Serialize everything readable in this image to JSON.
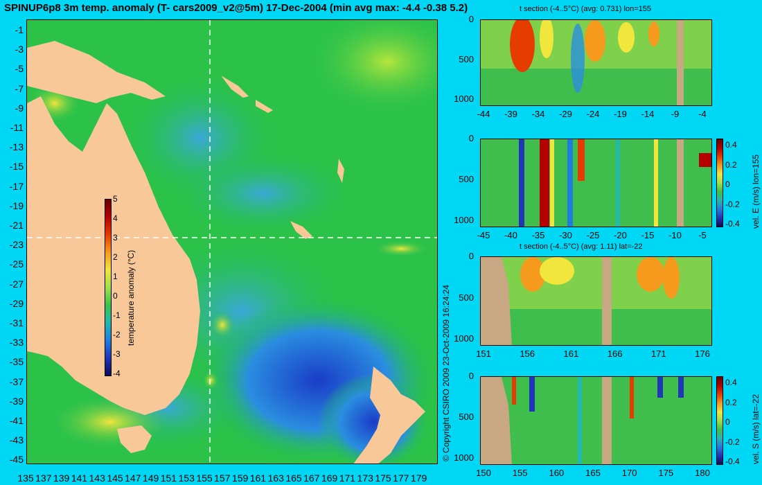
{
  "title": "SPINUP6p8 3m temp. anomaly (T- cars2009_v2@5m) 17-Dec-2004 (min avg max: -4.4 -0.38 5.2)",
  "copyright": "© Copyright CSIRO 2009   23-Oct-2009 16:24:24",
  "map": {
    "lat_labels": [
      "-1",
      "-3",
      "-5",
      "-7",
      "-9",
      "-11",
      "-13",
      "-15",
      "-17",
      "-19",
      "-21",
      "-23",
      "-25",
      "-27",
      "-29",
      "-31",
      "-33",
      "-35",
      "-37",
      "-39",
      "-41",
      "-43",
      "-45"
    ],
    "lon_labels": [
      "135",
      "137",
      "139",
      "141",
      "143",
      "145",
      "147",
      "149",
      "151",
      "153",
      "155",
      "157",
      "159",
      "161",
      "163",
      "165",
      "167",
      "169",
      "171",
      "173",
      "175",
      "177",
      "179"
    ],
    "colorbar": {
      "label": "temperature anomaly (°C)",
      "ticks": [
        "5",
        "4",
        "3",
        "2",
        "1",
        "0",
        "-1",
        "-2",
        "-3",
        "-4"
      ]
    },
    "colors": {
      "land": "#f8c898",
      "ocean_green": "#22c04a",
      "ocean_blue": "#1e7ee0",
      "warm": "#e63c00",
      "section_line": "#ffffff"
    }
  },
  "panels": [
    {
      "title": "t section (-4..5°C) (avg: 0.731) lon=155",
      "y_ticks": [
        "0",
        "500",
        "1000"
      ],
      "x_ticks": [
        "-44",
        "-39",
        "-34",
        "-29",
        "-24",
        "-19",
        "-14",
        "-9",
        "-4"
      ]
    },
    {
      "title": "",
      "y_ticks": [
        "0",
        "500",
        "1000"
      ],
      "x_ticks": [
        "-45",
        "-40",
        "-35",
        "-30",
        "-25",
        "-20",
        "-15",
        "-10",
        "-5"
      ],
      "colorbar_label": "vel. E (m/s) lon=155",
      "colorbar_ticks": [
        "0.4",
        "0.2",
        "0",
        "-0.2",
        "-0.4"
      ]
    },
    {
      "title": "t section (-4..5°C) (avg: 1.11) lat=-22",
      "y_ticks": [
        "0",
        "500",
        "1000"
      ],
      "x_ticks": [
        "151",
        "156",
        "161",
        "166",
        "171",
        "176"
      ]
    },
    {
      "title": "",
      "y_ticks": [
        "0",
        "500",
        "1000"
      ],
      "x_ticks": [
        "150",
        "155",
        "160",
        "165",
        "170",
        "175",
        "180"
      ],
      "colorbar_label": "vel. S (m/s) lat=-22",
      "colorbar_ticks": [
        "0.4",
        "0.2",
        "0",
        "-0.2",
        "-0.4"
      ]
    }
  ]
}
